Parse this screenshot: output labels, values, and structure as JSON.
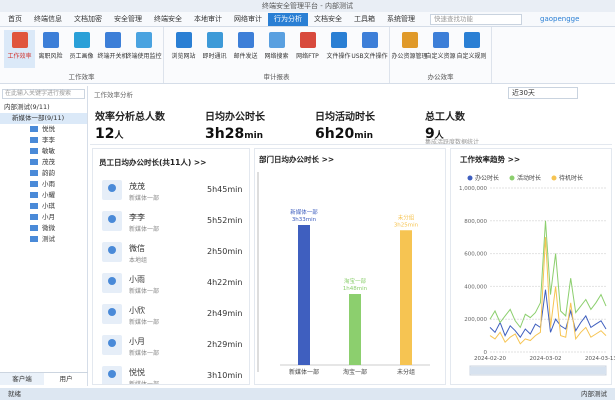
{
  "window": {
    "title": "终端安全管理平台 - 内部测试"
  },
  "menu": {
    "tabs": [
      "首页",
      "终端信息",
      "文档加密",
      "安全管理",
      "终端安全",
      "本地审计",
      "网络审计",
      "行为分析",
      "文档安全",
      "工具箱",
      "系统管理"
    ],
    "active": 7,
    "search": "快速查找功能",
    "user": "gaopengge"
  },
  "ribbon": {
    "active": 0,
    "groups": [
      {
        "label": "工作效率",
        "items": [
          "工作效率",
          "离职风险",
          "员工画像",
          "终端开关机",
          "终端使用监控"
        ]
      },
      {
        "label": "审计报表",
        "items": [
          "浏览网站",
          "即时通讯",
          "邮件发送",
          "网络搜索",
          "网络FTP",
          "文件操作",
          "USB文件操作"
        ]
      },
      {
        "label": "办公效率",
        "items": [
          "办公资源管理",
          "自定义资源",
          "自定义规则"
        ]
      }
    ]
  },
  "tree": {
    "search": "在此输入关键字进行搜索",
    "root": "内部测试(9/11)",
    "dept": "新媒体一部(9/11)",
    "members": [
      "悦悦",
      "李李",
      "敏敏",
      "茂茂",
      "韵韵",
      "小雨",
      "小耀",
      "小琪",
      "小月",
      "微微",
      "测试"
    ],
    "tabs": [
      "客户端",
      "用户"
    ]
  },
  "main": {
    "title": "工作效率分析",
    "range": "近30天",
    "stats": [
      {
        "label": "效率分析总人数",
        "value": "12",
        "unit": "人"
      },
      {
        "label": "日均办公时长",
        "value": "3h28",
        "unit": "min"
      },
      {
        "label": "日均活动时长",
        "value": "6h20",
        "unit": "min"
      },
      {
        "label": "总工人数",
        "value": "9",
        "unit": "人"
      }
    ],
    "stats_note": "集成活跃度数据统计",
    "employees": {
      "title": "员工日均办公时长(共11人) >>",
      "items": [
        {
          "name": "茂茂",
          "dept": "新媒体一部",
          "time": "5h45min"
        },
        {
          "name": "李李",
          "dept": "新媒体一部",
          "time": "5h52min"
        },
        {
          "name": "微信",
          "dept": "本地组",
          "time": "2h50min"
        },
        {
          "name": "小雨",
          "dept": "新媒体一部",
          "time": "4h22min"
        },
        {
          "name": "小欣",
          "dept": "新媒体一部",
          "time": "2h49min"
        },
        {
          "name": "小月",
          "dept": "新媒体一部",
          "time": "2h29min"
        },
        {
          "name": "悦悦",
          "dept": "新媒体一部",
          "time": "3h10min"
        }
      ]
    }
  },
  "chart_data": [
    {
      "type": "bar",
      "title": "部门日均办公时长 >>",
      "categories": [
        "新媒体一部",
        "淘宝一部",
        "未分组"
      ],
      "values": [
        213,
        108,
        205
      ],
      "value_labels": [
        "3h33min",
        "1h48min",
        "3h25min"
      ],
      "colors": [
        "#3f5fbf",
        "#8ccf6e",
        "#f6c452"
      ]
    },
    {
      "type": "line",
      "title": "工作效率趋势 >>",
      "categories": [
        "2024-02-20",
        null,
        null,
        null,
        null,
        null,
        null,
        null,
        null,
        null,
        null,
        "2024-03-02",
        null,
        null,
        null,
        null,
        null,
        null,
        null,
        null,
        null,
        null,
        "2024-03-13",
        null
      ],
      "ylim": [
        0,
        1000000
      ],
      "yticks": [
        0,
        {
          "value": 200000,
          "label": "200,000"
        },
        {
          "value": 400000,
          "label": "400,000"
        },
        {
          "value": 600000,
          "label": "600,000"
        },
        {
          "value": 800000,
          "label": "800,000"
        },
        {
          "value": 1000000,
          "label": "1,000,000"
        }
      ],
      "grid": true,
      "series": [
        {
          "name": "办公时长",
          "color": "#3f5fbf",
          "values": [
            150000,
            120000,
            180000,
            100000,
            160000,
            130000,
            90000,
            140000,
            110000,
            170000,
            150000,
            380000,
            120000,
            200000,
            160000,
            140000,
            250000,
            130000,
            180000,
            220000,
            150000,
            170000,
            190000,
            140000
          ]
        },
        {
          "name": "活动时长",
          "color": "#8ccf6e",
          "values": [
            200000,
            250000,
            180000,
            220000,
            260000,
            190000,
            150000,
            230000,
            210000,
            240000,
            300000,
            800000,
            350000,
            600000,
            250000,
            220000,
            450000,
            240000,
            280000,
            320000,
            260000,
            300000,
            350000,
            280000
          ]
        },
        {
          "name": "待机时长",
          "color": "#f6c452",
          "values": [
            100000,
            80000,
            120000,
            60000,
            90000,
            110000,
            50000,
            80000,
            70000,
            100000,
            120000,
            700000,
            150000,
            400000,
            100000,
            90000,
            300000,
            80000,
            120000,
            150000,
            90000,
            110000,
            130000,
            100000
          ]
        }
      ]
    }
  ],
  "status": {
    "left": "就绪",
    "right": "内部测试"
  }
}
